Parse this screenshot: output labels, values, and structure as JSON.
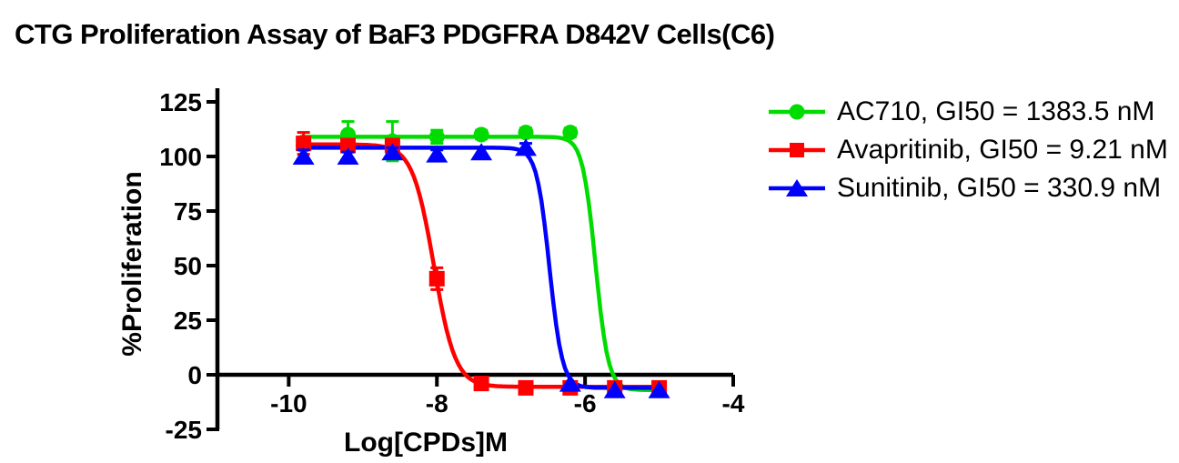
{
  "chart_data": {
    "type": "line",
    "title": "CTG Proliferation Assay of BaF3 PDGFRA D842V Cells(C6)",
    "xlabel": "Log[CPDs]M",
    "ylabel": "%Proliferation",
    "x_ticks": [
      -10,
      -8,
      -6,
      -4
    ],
    "y_ticks": [
      125,
      100,
      75,
      50,
      25,
      0,
      -25
    ],
    "xlim": [
      -10.95,
      -4
    ],
    "ylim": [
      -25,
      125
    ],
    "grid": false,
    "legend_position": "right",
    "axis_color": "#000000",
    "x": [
      -9.8,
      -9.2,
      -8.6,
      -8.0,
      -7.4,
      -6.8,
      -6.2,
      -5.6,
      -5.0
    ],
    "series": [
      {
        "name": "AC710",
        "legend_label": "AC710, GI50 = 1383.5 nM",
        "gi50_nM": 1383.5,
        "color": "#00DC00",
        "marker": "circle",
        "values": [
          105,
          110,
          107,
          109,
          110,
          111,
          111,
          -7,
          -7
        ],
        "errors": [
          2,
          6,
          9,
          3,
          2,
          2,
          2,
          0,
          0
        ],
        "fit": {
          "top": 109,
          "bottom": -7,
          "logIC50": -5.86,
          "hill": -5
        }
      },
      {
        "name": "Avapritinib",
        "legend_label": "Avapritinib, GI50 = 9.21 nM",
        "gi50_nM": 9.21,
        "color": "#FF0000",
        "marker": "square",
        "values": [
          106,
          105,
          105,
          44,
          -4,
          -6,
          -6,
          -6,
          -6
        ],
        "errors": [
          5,
          2,
          2,
          5,
          2,
          0,
          0,
          0,
          0
        ],
        "fit": {
          "top": 105.5,
          "bottom": -5.5,
          "logIC50": -8.04,
          "hill": -3
        }
      },
      {
        "name": "Sunitinib",
        "legend_label": "Sunitinib, GI50 = 330.9 nM",
        "gi50_nM": 330.9,
        "color": "#0000FF",
        "marker": "triangle",
        "values": [
          100,
          100,
          102,
          101,
          102,
          104,
          -4,
          -7,
          -7
        ],
        "errors": [
          3,
          2,
          2,
          2,
          2,
          2,
          0,
          0,
          0
        ],
        "fit": {
          "top": 104,
          "bottom": -6,
          "logIC50": -6.48,
          "hill": -5
        }
      }
    ]
  }
}
